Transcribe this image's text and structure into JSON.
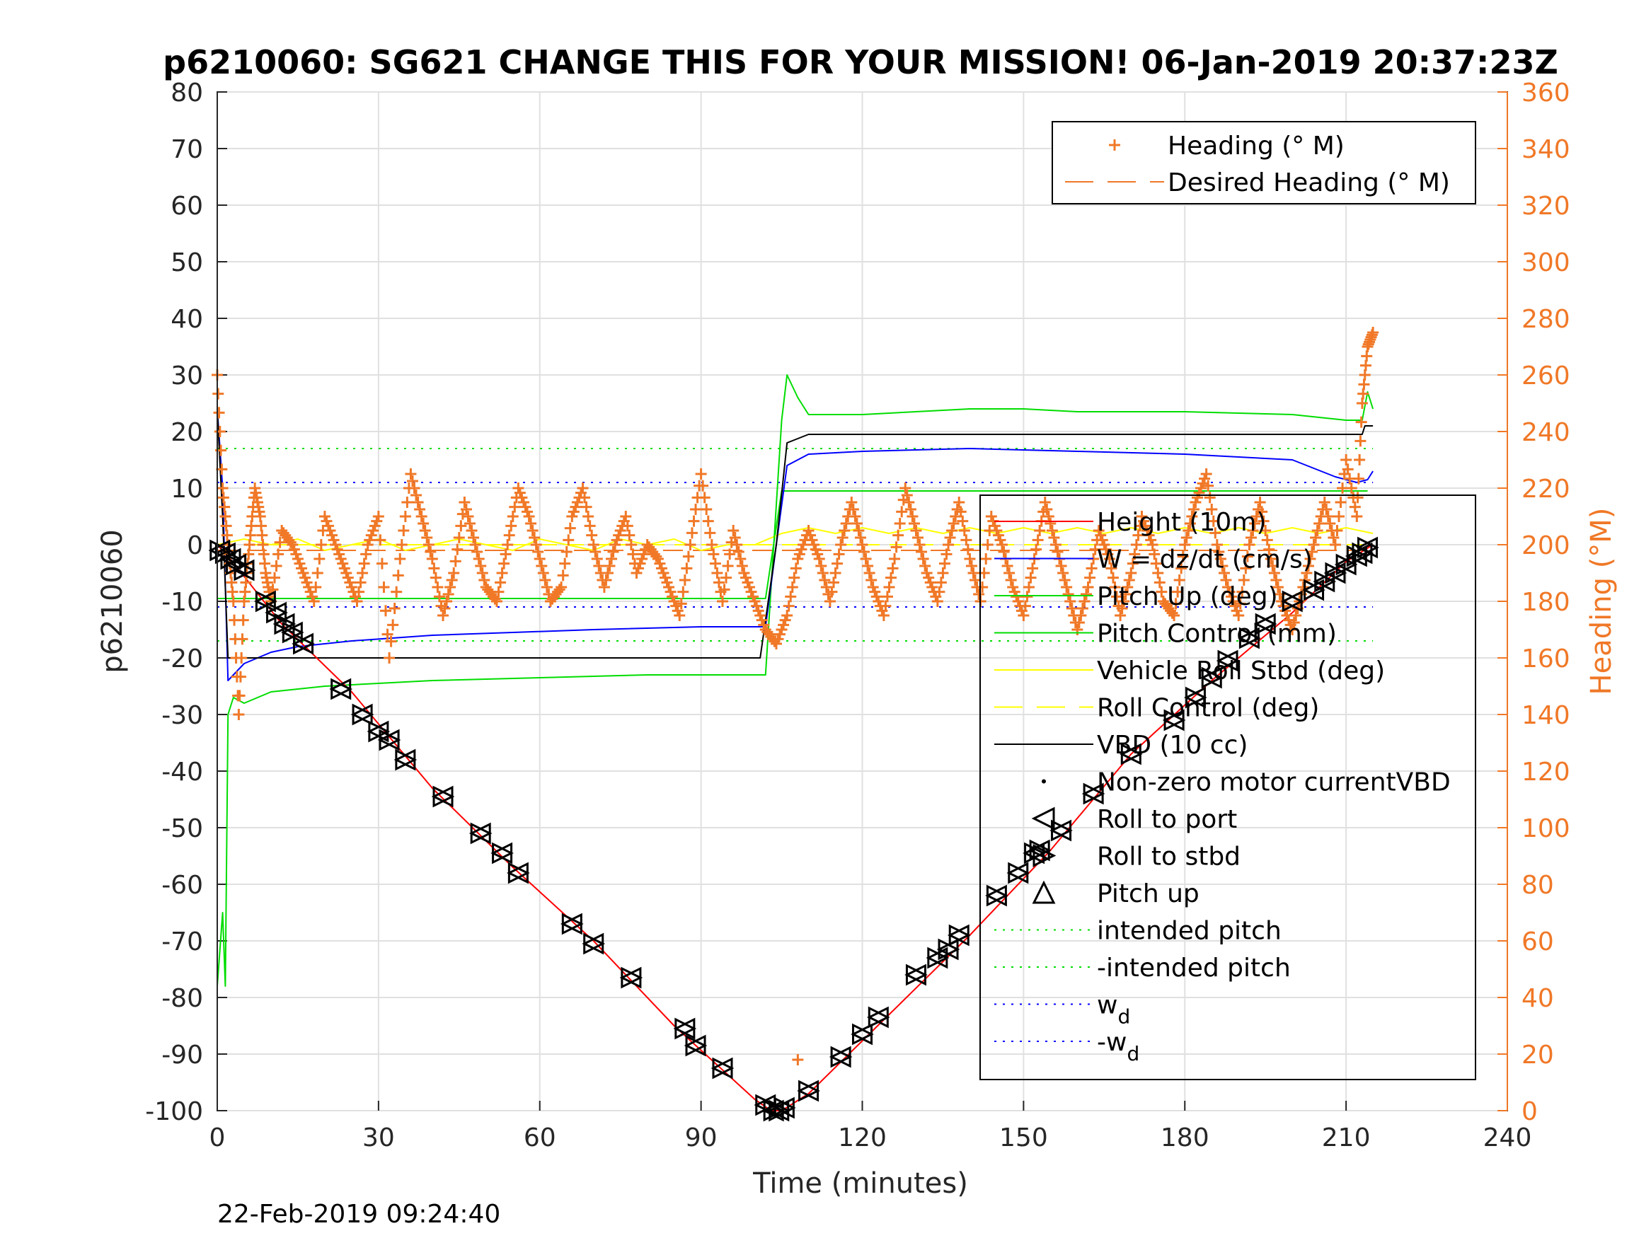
{
  "chart_data": {
    "type": "line",
    "title": "p6210060: SG621 CHANGE THIS FOR YOUR MISSION! 06-Jan-2019 20:37:23Z",
    "xlabel": "Time (minutes)",
    "ylabel": "p6210060",
    "y2label": "Heading (°M)",
    "footer": "22-Feb-2019 09:24:40",
    "xlim": [
      0,
      240
    ],
    "ylim": [
      -100,
      80
    ],
    "y2lim": [
      0,
      360
    ],
    "xticks": [
      0,
      30,
      60,
      90,
      120,
      150,
      180,
      210,
      240
    ],
    "yticks": [
      -100,
      -90,
      -80,
      -70,
      -60,
      -50,
      -40,
      -30,
      -20,
      -10,
      0,
      10,
      20,
      30,
      40,
      50,
      60,
      70,
      80
    ],
    "y2ticks": [
      0,
      20,
      40,
      60,
      80,
      100,
      120,
      140,
      160,
      180,
      200,
      220,
      240,
      260,
      280,
      300,
      320,
      340,
      360
    ],
    "grid": true,
    "colors": {
      "height": "#ff0000",
      "w": "#0000ff",
      "pitch": "#00dd00",
      "roll": "#ffff00",
      "vbd": "#000000",
      "heading": "#f07827"
    },
    "legend_heading": [
      {
        "label": "Heading (° M)",
        "marker": "plus",
        "color": "#f07827"
      },
      {
        "label": "Desired Heading (° M)",
        "marker": "dash",
        "color": "#f07827"
      }
    ],
    "legend_main": [
      {
        "label": "Height (10m)",
        "marker": "line",
        "color": "#ff0000"
      },
      {
        "label": "W = dz/dt (cm/s)",
        "marker": "line",
        "color": "#0000ff"
      },
      {
        "label": "Pitch Up (deg)",
        "marker": "line",
        "color": "#00dd00"
      },
      {
        "label": "Pitch Control (mm)",
        "marker": "line",
        "color": "#00dd00"
      },
      {
        "label": "Vehicle Roll Stbd (deg)",
        "marker": "line",
        "color": "#ffff00"
      },
      {
        "label": "Roll Control (deg)",
        "marker": "dash",
        "color": "#ffff00"
      },
      {
        "label": "VBD (10 cc)",
        "marker": "line",
        "color": "#000000"
      },
      {
        "label": "Non-zero motor currentVBD",
        "marker": "dot",
        "color": "#000000"
      },
      {
        "label": "Roll to port",
        "marker": "tri-left",
        "color": "#000000"
      },
      {
        "label": "Roll to stbd",
        "marker": "tri-right",
        "color": "#000000"
      },
      {
        "label": "Pitch up",
        "marker": "tri-up",
        "color": "#000000"
      },
      {
        "label": "intended pitch",
        "marker": "dotted",
        "color": "#00dd00"
      },
      {
        "label": "-intended pitch",
        "marker": "dotted",
        "color": "#00dd00"
      },
      {
        "label": "w",
        "sub": "d",
        "marker": "dotted",
        "color": "#0000ff"
      },
      {
        "label": "-w",
        "sub": "d",
        "marker": "dotted",
        "color": "#0000ff"
      }
    ],
    "series": [
      {
        "key": "height",
        "name": "Height (10m)",
        "x": [
          0,
          2,
          12,
          25,
          40,
          55,
          70,
          85,
          100,
          103,
          105,
          110,
          125,
          140,
          155,
          170,
          185,
          200,
          210,
          215
        ],
        "y": [
          0,
          -2,
          -14,
          -26,
          -43,
          -57,
          -70,
          -85,
          -98,
          -100,
          -100,
          -97,
          -83,
          -69,
          -54,
          -37,
          -24,
          -12,
          -3,
          0
        ]
      },
      {
        "key": "w",
        "name": "W = dz/dt (cm/s)",
        "x": [
          0,
          1,
          2,
          5,
          10,
          15,
          25,
          40,
          55,
          70,
          90,
          102,
          104,
          106,
          110,
          120,
          140,
          160,
          180,
          200,
          208,
          212,
          214,
          215
        ],
        "y": [
          24,
          10,
          -24,
          -21,
          -19,
          -18,
          -17,
          -16,
          -15.5,
          -15,
          -14.5,
          -14.5,
          0,
          14,
          16,
          16.5,
          17,
          16.5,
          16,
          15,
          12,
          11,
          11.5,
          13
        ]
      },
      {
        "key": "pitch_up",
        "name": "Pitch Up (deg)",
        "x": [
          0,
          1,
          1.5,
          2,
          3,
          5,
          10,
          20,
          40,
          60,
          80,
          102,
          105,
          106,
          108,
          110,
          120,
          140,
          150,
          160,
          180,
          200,
          210,
          213,
          214,
          215
        ],
        "y": [
          -78,
          -65,
          -78,
          -30,
          -27,
          -28,
          -26,
          -25,
          -24,
          -23.5,
          -23,
          -23,
          22,
          30,
          26,
          23,
          23,
          24,
          24,
          23.5,
          23.5,
          23,
          22,
          22,
          27,
          24
        ]
      },
      {
        "key": "pitch_control",
        "name": "Pitch Control (mm)",
        "x": [
          0,
          5,
          50,
          100,
          102,
          105,
          110,
          150,
          200,
          214
        ],
        "y": [
          -9.5,
          -9.5,
          -9.5,
          -9.5,
          -9.5,
          9.5,
          9.5,
          9.5,
          9.5,
          9.5
        ]
      },
      {
        "key": "roll",
        "name": "Vehicle Roll Stbd (deg)",
        "x": [
          0,
          5,
          10,
          15,
          20,
          25,
          30,
          35,
          40,
          45,
          50,
          55,
          60,
          65,
          70,
          75,
          80,
          85,
          90,
          95,
          100,
          105,
          110,
          115,
          120,
          125,
          130,
          135,
          140,
          145,
          150,
          155,
          160,
          165,
          170,
          175,
          180,
          185,
          190,
          195,
          200,
          205,
          210,
          215
        ],
        "y": [
          0,
          1,
          0,
          1,
          -1,
          0,
          1,
          -1,
          0,
          1,
          0,
          -1,
          1,
          0,
          -1,
          1,
          0,
          1,
          -1,
          0,
          0,
          2,
          3,
          2,
          3,
          2,
          3,
          2,
          3,
          2,
          3,
          2,
          3,
          2,
          3,
          2,
          3,
          2,
          3,
          2,
          3,
          2,
          3,
          2
        ]
      },
      {
        "key": "roll_control",
        "name": "Roll Control (deg)",
        "x": [
          0,
          50,
          102,
          105,
          214
        ],
        "y": [
          0,
          0,
          0,
          0,
          0
        ]
      },
      {
        "key": "vbd",
        "name": "VBD (10 cc)",
        "x": [
          0,
          1,
          2,
          10,
          50,
          101,
          104,
          106,
          110,
          150,
          200,
          213,
          213.5,
          215
        ],
        "y": [
          24,
          5,
          -20,
          -20,
          -20,
          -20,
          0,
          18,
          19.5,
          19.5,
          19.5,
          19.5,
          21,
          21
        ]
      },
      {
        "key": "intended_pitch",
        "name": "intended pitch",
        "x": [
          0,
          215
        ],
        "y": [
          17,
          17
        ]
      },
      {
        "key": "neg_intended_pitch",
        "name": "-intended pitch",
        "x": [
          0,
          215
        ],
        "y": [
          -17,
          -17
        ]
      },
      {
        "key": "wd",
        "name": "w_d",
        "x": [
          0,
          215
        ],
        "y": [
          11,
          11
        ]
      },
      {
        "key": "neg_wd",
        "name": "-w_d",
        "x": [
          0,
          215
        ],
        "y": [
          -11,
          -11
        ]
      }
    ],
    "heading_series": {
      "name": "Heading (° M)",
      "axis": "right",
      "x": [
        0,
        1,
        2,
        3,
        4,
        5,
        6,
        7,
        8,
        9,
        10,
        12,
        14,
        16,
        18,
        20,
        22,
        24,
        26,
        28,
        30,
        32,
        34,
        36,
        38,
        40,
        42,
        44,
        46,
        48,
        50,
        52,
        54,
        56,
        58,
        60,
        62,
        64,
        66,
        68,
        70,
        72,
        74,
        76,
        78,
        80,
        82,
        84,
        86,
        88,
        90,
        92,
        94,
        96,
        98,
        100,
        102,
        104,
        106,
        108,
        110,
        112,
        114,
        116,
        118,
        120,
        122,
        124,
        126,
        128,
        130,
        132,
        134,
        136,
        138,
        140,
        142,
        144,
        146,
        148,
        150,
        152,
        154,
        156,
        158,
        160,
        162,
        164,
        166,
        168,
        170,
        172,
        174,
        176,
        178,
        180,
        182,
        184,
        186,
        188,
        190,
        192,
        194,
        196,
        198,
        200,
        202,
        204,
        206,
        208,
        210,
        212,
        213,
        214,
        215
      ],
      "y": [
        260,
        220,
        200,
        180,
        140,
        180,
        200,
        220,
        210,
        190,
        180,
        205,
        200,
        190,
        180,
        210,
        200,
        190,
        180,
        200,
        210,
        160,
        195,
        225,
        210,
        195,
        175,
        190,
        215,
        200,
        185,
        180,
        200,
        220,
        210,
        195,
        180,
        185,
        210,
        220,
        200,
        185,
        200,
        210,
        190,
        200,
        195,
        185,
        175,
        200,
        225,
        200,
        180,
        205,
        190,
        180,
        170,
        165,
        175,
        195,
        205,
        195,
        180,
        200,
        215,
        200,
        185,
        175,
        195,
        220,
        205,
        190,
        180,
        200,
        215,
        195,
        180,
        210,
        200,
        185,
        175,
        195,
        215,
        200,
        185,
        170,
        185,
        205,
        195,
        175,
        190,
        210,
        200,
        180,
        175,
        200,
        215,
        225,
        200,
        185,
        175,
        200,
        215,
        195,
        180,
        170,
        185,
        200,
        215,
        200,
        230,
        210,
        250,
        270,
        275
      ]
    },
    "heading_outlier": {
      "x": 108,
      "y": 18
    },
    "desired_heading": {
      "x": [
        0,
        215
      ],
      "y": [
        198,
        198
      ]
    },
    "markers": {
      "x": [
        0.5,
        1.5,
        2.5,
        3.5,
        5,
        9,
        11,
        12.5,
        14,
        16,
        23,
        27,
        30,
        32,
        35,
        42,
        49,
        53,
        56,
        66,
        70,
        77,
        87,
        89,
        94,
        102,
        103.5,
        104.5,
        105.5,
        110,
        116,
        120,
        123,
        130,
        134,
        136,
        138,
        145,
        149,
        152,
        153,
        157,
        163,
        170,
        178,
        182,
        185,
        188,
        192,
        195,
        200,
        204,
        206,
        208,
        210,
        212,
        213,
        214
      ],
      "y": [
        -1,
        -1.5,
        -2.5,
        -3.5,
        -4.5,
        -10,
        -12,
        -14,
        -15.5,
        -17.5,
        -25.5,
        -30,
        -33,
        -34.5,
        -38,
        -44.5,
        -51,
        -54.5,
        -58,
        -67,
        -70.5,
        -76.5,
        -85.5,
        -88.5,
        -92.5,
        -99,
        -100,
        -100,
        -99.5,
        -96.5,
        -90.5,
        -86.5,
        -83.5,
        -76,
        -73,
        -71.5,
        -69,
        -62,
        -58,
        -54.5,
        -54,
        -50.5,
        -44,
        -37,
        -31,
        -27,
        -23.5,
        -20.5,
        -16.5,
        -14,
        -10,
        -8,
        -6.5,
        -5,
        -3.5,
        -2,
        -1.5,
        -0.5
      ]
    }
  }
}
